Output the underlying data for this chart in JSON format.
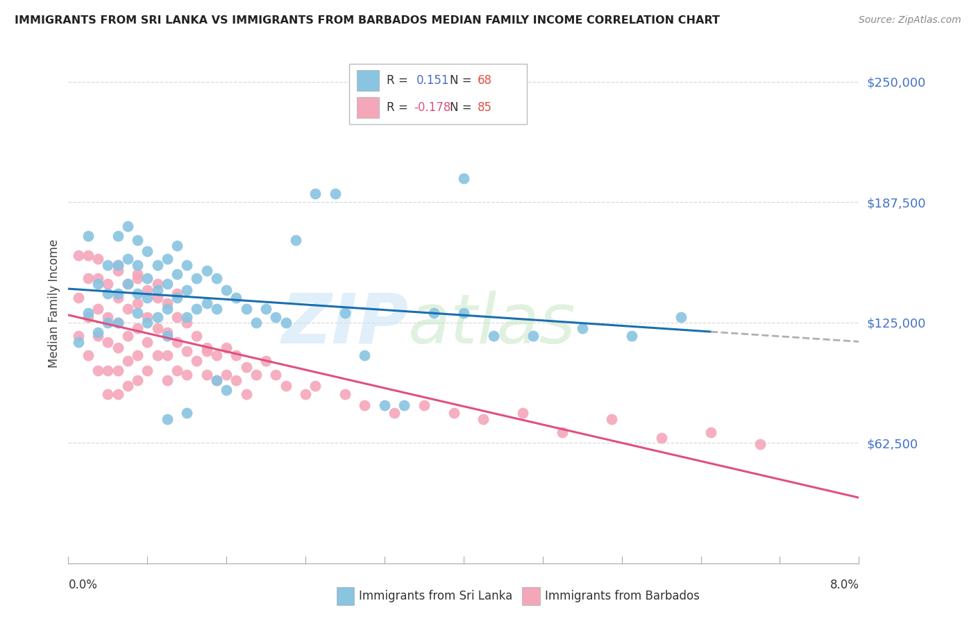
{
  "title": "IMMIGRANTS FROM SRI LANKA VS IMMIGRANTS FROM BARBADOS MEDIAN FAMILY INCOME CORRELATION CHART",
  "source": "Source: ZipAtlas.com",
  "ylabel": "Median Family Income",
  "xlim": [
    0.0,
    0.08
  ],
  "ylim": [
    0,
    270000
  ],
  "ytick_vals": [
    62500,
    125000,
    187500,
    250000
  ],
  "ytick_labels": [
    "$62,500",
    "$125,000",
    "$187,500",
    "$250,000"
  ],
  "sl_color": "#89c4e1",
  "bb_color": "#f4a7b9",
  "sl_line_color": "#1a6faf",
  "bb_line_color": "#e05080",
  "dash_color": "#b0b0b0",
  "sri_lanka_R": 0.151,
  "sri_lanka_N": 68,
  "barbados_R": -0.178,
  "barbados_N": 85,
  "grid_color": "#d8d8d8",
  "sl_x": [
    0.001,
    0.002,
    0.002,
    0.003,
    0.003,
    0.004,
    0.004,
    0.004,
    0.005,
    0.005,
    0.005,
    0.005,
    0.006,
    0.006,
    0.006,
    0.007,
    0.007,
    0.007,
    0.007,
    0.008,
    0.008,
    0.008,
    0.008,
    0.009,
    0.009,
    0.009,
    0.01,
    0.01,
    0.01,
    0.01,
    0.011,
    0.011,
    0.011,
    0.012,
    0.012,
    0.012,
    0.013,
    0.013,
    0.014,
    0.014,
    0.015,
    0.015,
    0.016,
    0.017,
    0.018,
    0.019,
    0.02,
    0.021,
    0.022,
    0.023,
    0.025,
    0.027,
    0.028,
    0.03,
    0.032,
    0.034,
    0.037,
    0.04,
    0.043,
    0.047,
    0.052,
    0.057,
    0.062,
    0.04,
    0.015,
    0.016,
    0.012,
    0.01
  ],
  "sl_y": [
    115000,
    170000,
    130000,
    145000,
    120000,
    155000,
    140000,
    125000,
    170000,
    155000,
    140000,
    125000,
    175000,
    158000,
    145000,
    168000,
    155000,
    140000,
    130000,
    162000,
    148000,
    138000,
    125000,
    155000,
    142000,
    128000,
    158000,
    145000,
    132000,
    118000,
    165000,
    150000,
    138000,
    155000,
    142000,
    128000,
    148000,
    132000,
    152000,
    135000,
    148000,
    132000,
    142000,
    138000,
    132000,
    125000,
    132000,
    128000,
    125000,
    168000,
    192000,
    192000,
    130000,
    108000,
    82000,
    82000,
    130000,
    130000,
    118000,
    118000,
    122000,
    118000,
    128000,
    200000,
    95000,
    90000,
    78000,
    75000
  ],
  "bb_x": [
    0.001,
    0.001,
    0.002,
    0.002,
    0.002,
    0.003,
    0.003,
    0.003,
    0.003,
    0.004,
    0.004,
    0.004,
    0.004,
    0.004,
    0.005,
    0.005,
    0.005,
    0.005,
    0.005,
    0.005,
    0.006,
    0.006,
    0.006,
    0.006,
    0.006,
    0.007,
    0.007,
    0.007,
    0.007,
    0.007,
    0.008,
    0.008,
    0.008,
    0.008,
    0.009,
    0.009,
    0.009,
    0.01,
    0.01,
    0.01,
    0.01,
    0.011,
    0.011,
    0.011,
    0.012,
    0.012,
    0.012,
    0.013,
    0.013,
    0.014,
    0.014,
    0.015,
    0.015,
    0.016,
    0.016,
    0.017,
    0.017,
    0.018,
    0.018,
    0.019,
    0.02,
    0.021,
    0.022,
    0.024,
    0.025,
    0.028,
    0.03,
    0.033,
    0.036,
    0.039,
    0.042,
    0.046,
    0.05,
    0.055,
    0.06,
    0.065,
    0.07,
    0.001,
    0.002,
    0.003,
    0.005,
    0.007,
    0.009,
    0.011,
    0.014
  ],
  "bb_y": [
    138000,
    118000,
    148000,
    128000,
    108000,
    148000,
    132000,
    118000,
    100000,
    145000,
    128000,
    115000,
    100000,
    88000,
    152000,
    138000,
    125000,
    112000,
    100000,
    88000,
    145000,
    132000,
    118000,
    105000,
    92000,
    148000,
    135000,
    122000,
    108000,
    95000,
    142000,
    128000,
    115000,
    100000,
    138000,
    122000,
    108000,
    135000,
    120000,
    108000,
    95000,
    128000,
    115000,
    100000,
    125000,
    110000,
    98000,
    118000,
    105000,
    112000,
    98000,
    108000,
    95000,
    112000,
    98000,
    108000,
    95000,
    102000,
    88000,
    98000,
    105000,
    98000,
    92000,
    88000,
    92000,
    88000,
    82000,
    78000,
    82000,
    78000,
    75000,
    78000,
    68000,
    75000,
    65000,
    68000,
    62000,
    160000,
    160000,
    158000,
    155000,
    150000,
    145000,
    140000,
    110000
  ]
}
